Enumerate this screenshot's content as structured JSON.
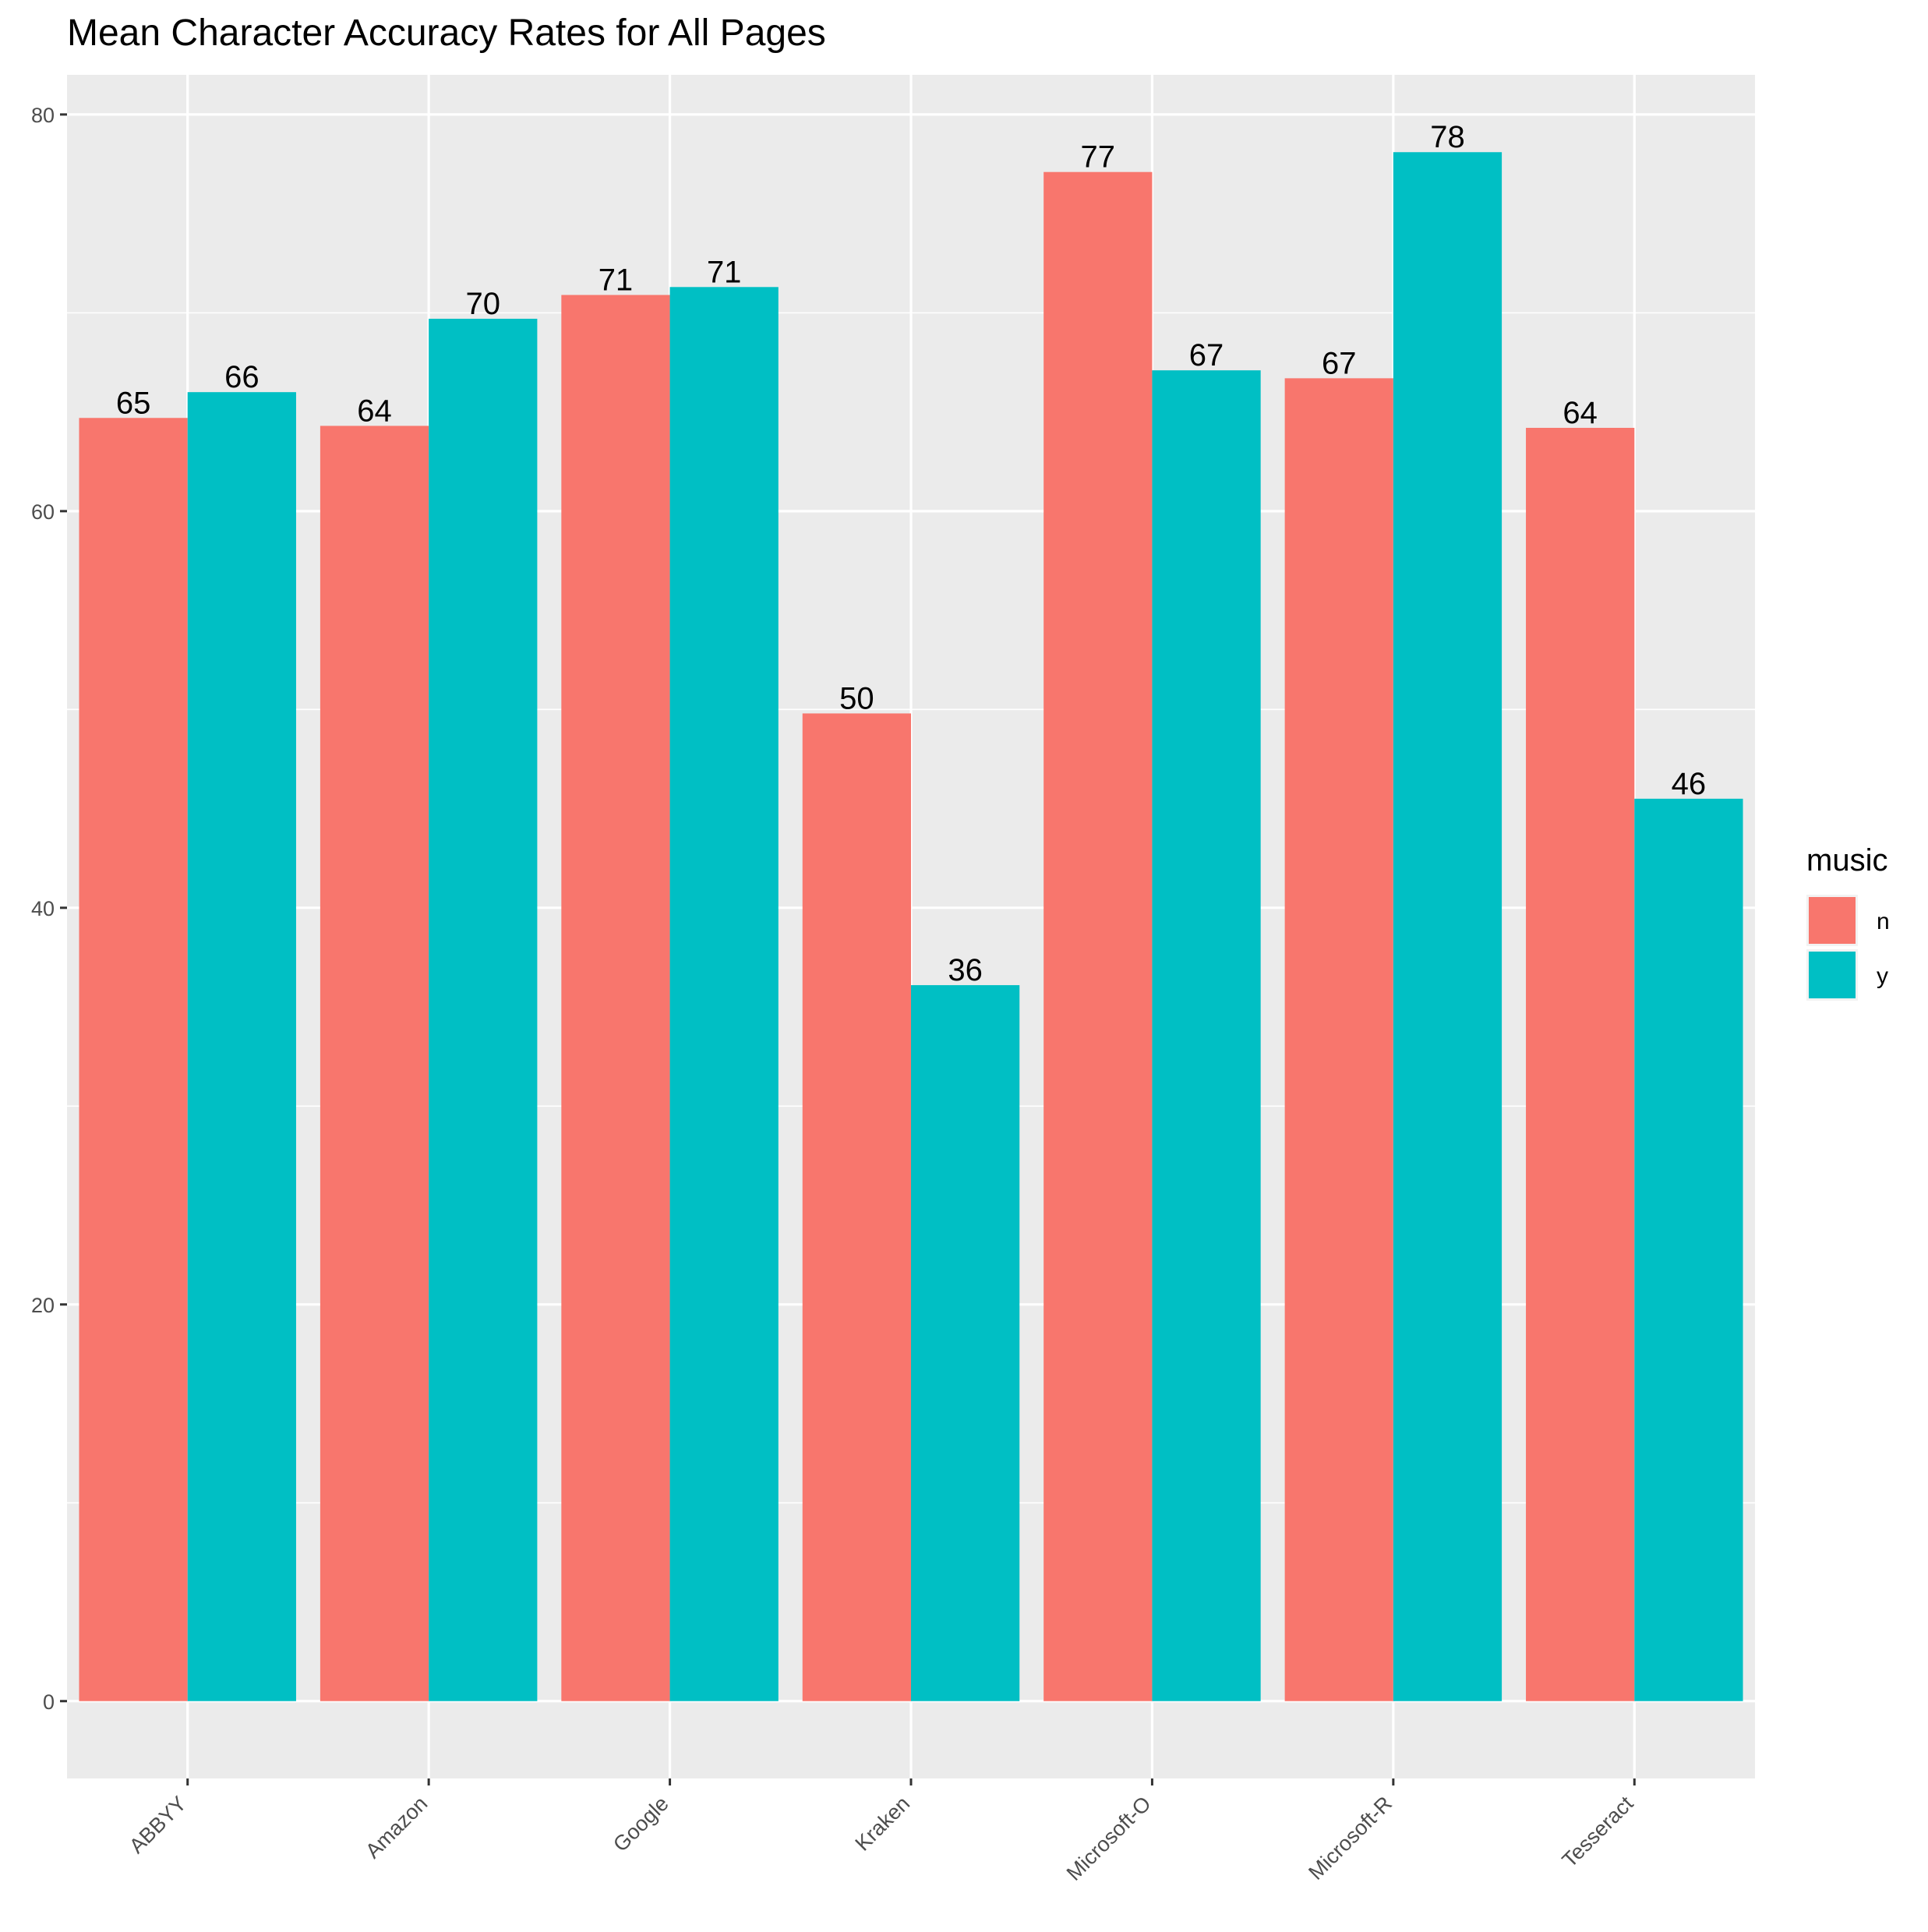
{
  "chart_data": {
    "type": "bar",
    "title": "Mean Character Accuracy Rates for All Pages",
    "xlabel": "",
    "ylabel": "",
    "categories": [
      "ABBYY",
      "Amazon",
      "Google",
      "Kraken",
      "Microsoft-O",
      "Microsoft-R",
      "Tesseract"
    ],
    "series": [
      {
        "name": "n",
        "color": "#F8766D",
        "values": [
          64.7,
          64.3,
          70.9,
          49.8,
          77.1,
          66.7,
          64.2
        ],
        "labels": [
          "65",
          "64",
          "71",
          "50",
          "77",
          "67",
          "64"
        ]
      },
      {
        "name": "y",
        "color": "#00BFC4",
        "values": [
          66.0,
          69.7,
          71.3,
          36.1,
          67.1,
          78.1,
          45.5
        ],
        "labels": [
          "66",
          "70",
          "71",
          "36",
          "67",
          "78",
          "46"
        ]
      }
    ],
    "ylim": [
      -3.9,
      82
    ],
    "yticks": [
      0,
      20,
      40,
      60,
      80
    ],
    "grid": true,
    "legend": {
      "title": "music",
      "position": "right"
    },
    "colors": {
      "panel_background": "#EBEBEB",
      "grid": "#FFFFFF",
      "n": "#F8766D",
      "y": "#00BFC4"
    }
  }
}
